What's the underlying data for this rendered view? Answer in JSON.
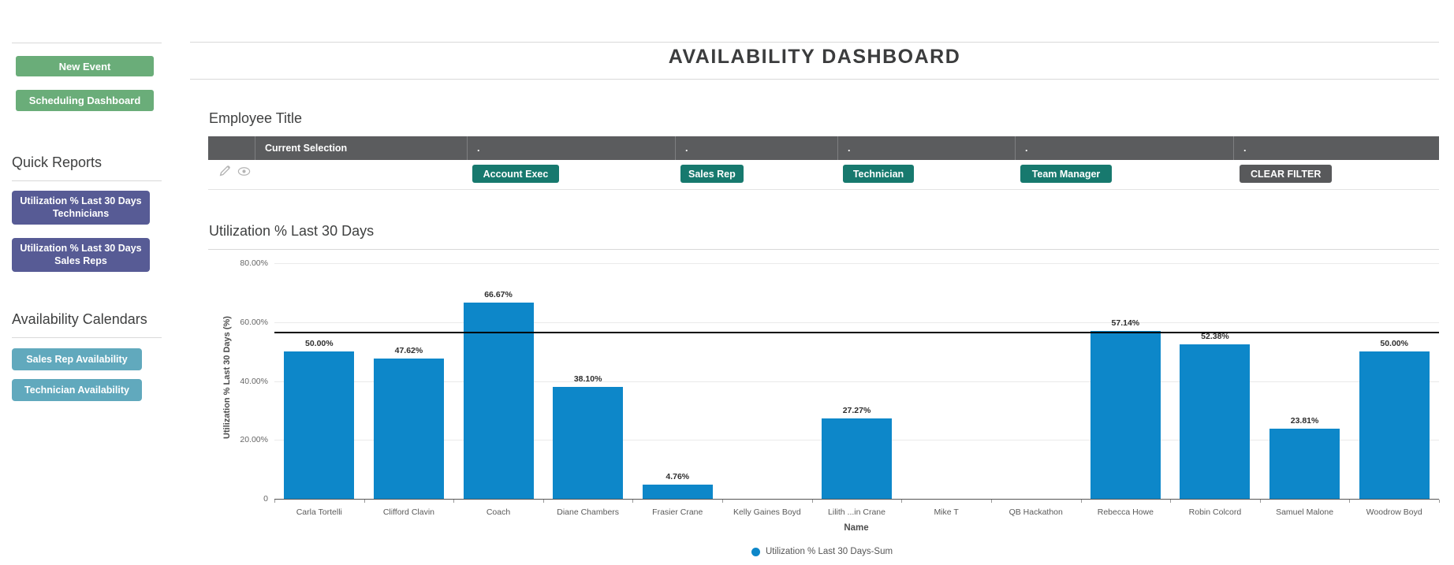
{
  "colors": {
    "green": "#6aad79",
    "purple": "#575b95",
    "teal_sidebar": "#61a9bd",
    "teal_filter": "#17796e",
    "dark_gray": "#58595b",
    "table_header": "#5b5c5e",
    "bar_blue": "#0d87c9"
  },
  "sidebar": {
    "new_event_label": "New Event",
    "scheduling_dashboard_label": "Scheduling Dashboard",
    "quick_reports_heading": "Quick Reports",
    "quick_report_buttons": [
      "Utilization % Last 30 Days Technicians",
      "Utilization % Last 30 Days Sales Reps"
    ],
    "availability_heading": "Availability Calendars",
    "availability_buttons": [
      "Sales Rep Availability",
      "Technician Availability"
    ]
  },
  "header": {
    "title": "AVAILABILITY DASHBOARD"
  },
  "filter_table": {
    "heading": "Employee Title",
    "columns": [
      "",
      "Current Selection",
      ".",
      ".",
      ".",
      ".",
      "."
    ],
    "filter_buttons": [
      "Account Exec",
      "Sales Rep",
      "Technician",
      "Team Manager"
    ],
    "clear_filter_label": "CLEAR FILTER",
    "row_icons": [
      "edit-pencil",
      "view-eye"
    ]
  },
  "chart_data": {
    "type": "bar",
    "title": "Utilization % Last 30 Days",
    "categories": [
      "Carla Tortelli",
      "Clifford Clavin",
      "Coach",
      "Diane Chambers",
      "Frasier Crane",
      "Kelly Gaines Boyd",
      "Lilith ...in Crane",
      "Mike T",
      "QB Hackathon",
      "Rebecca Howe",
      "Robin Colcord",
      "Samuel Malone",
      "Woodrow Boyd"
    ],
    "values": [
      50.0,
      47.62,
      66.67,
      38.1,
      4.76,
      0,
      27.27,
      0,
      0,
      57.14,
      52.38,
      23.81,
      50.0
    ],
    "value_labels": [
      "50.00%",
      "47.62%",
      "66.67%",
      "38.10%",
      "4.76%",
      "",
      "27.27%",
      "",
      "",
      "57.14%",
      "52.38%",
      "23.81%",
      "50.00%"
    ],
    "xlabel": "Name",
    "ylabel": "Utilization % Last 30 Days (%)",
    "yticks": [
      {
        "value": 80,
        "label": "80.00%"
      },
      {
        "value": 60,
        "label": "60.00%"
      },
      {
        "value": 40,
        "label": "40.00%"
      },
      {
        "value": 20,
        "label": "20.00%"
      },
      {
        "value": 0,
        "label": "0"
      }
    ],
    "ylim": [
      0,
      82.5
    ],
    "reference_line_value": 56.4,
    "grid": true,
    "legend": {
      "position": "bottom",
      "label": "Utilization % Last 30 Days-Sum"
    }
  }
}
